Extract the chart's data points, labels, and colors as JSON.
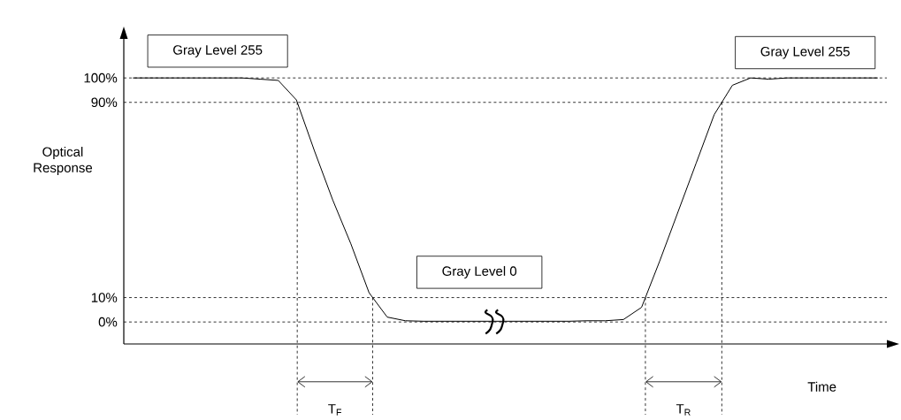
{
  "chart_data": {
    "type": "line",
    "xlabel": "Time",
    "ylabel": "Optical Response",
    "color": "#000000",
    "categories": [
      null,
      null,
      null,
      null,
      null,
      null,
      null,
      null,
      null,
      null,
      null,
      null,
      null,
      null,
      null,
      null,
      null,
      null,
      null,
      null,
      null,
      null,
      null,
      null,
      null,
      null,
      null,
      null,
      null,
      null,
      null,
      null,
      null,
      null,
      null,
      null,
      null,
      null,
      null,
      null,
      null,
      null
    ],
    "values": [
      100,
      100,
      100,
      100,
      100,
      100,
      100,
      99.5,
      99,
      91,
      70,
      50,
      32,
      12,
      2,
      0.5,
      0.3,
      0.3,
      0.3,
      0.3,
      0.3,
      0.3,
      0.3,
      0.3,
      0.3,
      0.5,
      0.5,
      1,
      6,
      25,
      45,
      65,
      85,
      97,
      100,
      99.5,
      100,
      100,
      100,
      100,
      100,
      100
    ],
    "ylim": [
      -9,
      116
    ],
    "yticks": [
      {
        "value": 0,
        "label": "0%"
      },
      {
        "value": 10,
        "label": "10%"
      },
      {
        "value": 90,
        "label": "90%"
      },
      {
        "value": 100,
        "label": "100%"
      }
    ],
    "ref_lines": [
      {
        "axis": "y",
        "value": 100,
        "line_style": "dashed",
        "color": "#000000"
      },
      {
        "axis": "y",
        "value": 90,
        "line_style": "dashed",
        "color": "#000000"
      },
      {
        "axis": "y",
        "value": 10,
        "line_style": "dashed",
        "color": "#000000"
      },
      {
        "axis": "y",
        "value": 0,
        "line_style": "dashed",
        "color": "#000000"
      }
    ],
    "annotations": [
      "Gray Level 255",
      "Gray Level 255",
      "Gray Level 0",
      "T$_{F}$",
      "T$_{R}$"
    ]
  }
}
